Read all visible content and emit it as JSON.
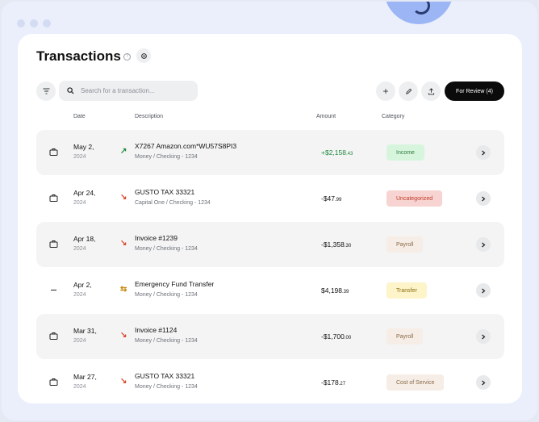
{
  "header": {
    "title": "Transactions",
    "help_icon": "help-circle-icon",
    "settings_icon": "gear-icon"
  },
  "toolbar": {
    "search_placeholder": "Search for a transaction...",
    "review_label": "For Review (4)"
  },
  "columns": {
    "date": "Date",
    "description": "Description",
    "amount": "Amount",
    "category": "Category"
  },
  "colors": {
    "income_bg": "#d7f5dd",
    "income_fg": "#2e7d3f",
    "uncat_bg": "#f7d4d1",
    "uncat_fg": "#c0392b",
    "payroll_bg": "#f5ede6",
    "payroll_fg": "#8a6a48",
    "transfer_bg": "#fdf4c9",
    "transfer_fg": "#8a6d12",
    "cost_bg": "#f5ede6",
    "cost_fg": "#8a6a48"
  },
  "transactions": [
    {
      "date": "May 2,",
      "year": "2024",
      "direction": "↗",
      "desc": "X7267 Amazon.com*WU57S8PI3",
      "account": "Money / Checking - 1234",
      "amount_main": "+$2,158",
      "amount_cents": ".43",
      "category": "Income"
    },
    {
      "date": "Apr 24,",
      "year": "2024",
      "direction": "↘",
      "desc": "GUSTO TAX 33321",
      "account": "Capital One / Checking - 1234",
      "amount_main": "-$47",
      "amount_cents": ".99",
      "category": "Uncategorized"
    },
    {
      "date": "Apr 18,",
      "year": "2024",
      "direction": "↘",
      "desc": "Invoice #1239",
      "account": "Money / Checking - 1234",
      "amount_main": "-$1,358",
      "amount_cents": ".30",
      "category": "Payroll"
    },
    {
      "date": "Apr 2,",
      "year": "2024",
      "direction": "⇆",
      "desc": "Emergency Fund Transfer",
      "account": "Money / Checking - 1234",
      "amount_main": "$4,198",
      "amount_cents": ".39",
      "category": "Transfer"
    },
    {
      "date": "Mar 31,",
      "year": "2024",
      "direction": "↘",
      "desc": "Invoice #1124",
      "account": "Money / Checking - 1234",
      "amount_main": "-$1,700",
      "amount_cents": ".00",
      "category": "Payroll"
    },
    {
      "date": "Mar 27,",
      "year": "2024",
      "direction": "↘",
      "desc": "GUSTO TAX 33321",
      "account": "Money / Checking - 1234",
      "amount_main": "-$178",
      "amount_cents": ".27",
      "category": "Cost of Service"
    }
  ]
}
